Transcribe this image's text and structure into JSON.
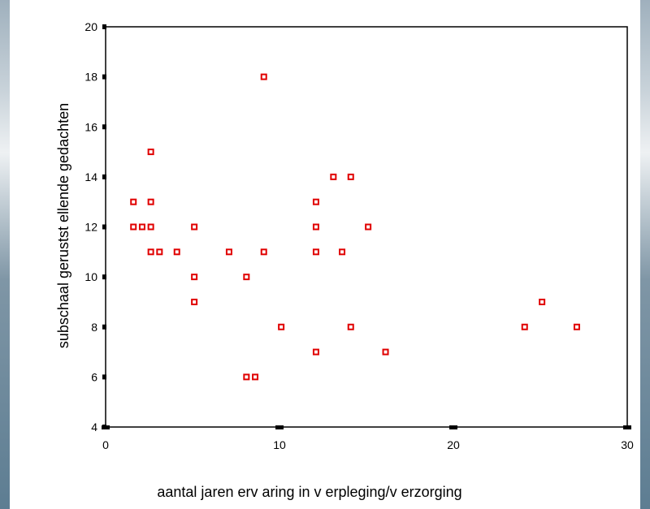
{
  "chart_data": {
    "type": "scatter",
    "xlabel": "aantal jaren erv aring in v erpleging/v erzorging",
    "ylabel": "subschaal gerustst ellende gedachten",
    "xlim": [
      0,
      30
    ],
    "ylim": [
      4,
      20
    ],
    "x_ticks": [
      "0",
      "10",
      "20",
      "30"
    ],
    "y_ticks": [
      "4",
      "6",
      "8",
      "10",
      "12",
      "14",
      "16",
      "18",
      "20"
    ],
    "grid": false,
    "marker_color": "#e00000",
    "series": [
      {
        "points": [
          [
            1.6,
            13
          ],
          [
            1.6,
            12
          ],
          [
            2.1,
            12
          ],
          [
            2.6,
            15
          ],
          [
            2.6,
            13
          ],
          [
            2.6,
            12
          ],
          [
            2.6,
            11
          ],
          [
            3.1,
            11
          ],
          [
            4.1,
            11
          ],
          [
            5.1,
            12
          ],
          [
            5.1,
            10
          ],
          [
            5.1,
            9
          ],
          [
            7.1,
            11
          ],
          [
            8.1,
            10
          ],
          [
            8.1,
            6
          ],
          [
            8.6,
            6
          ],
          [
            9.1,
            18
          ],
          [
            9.1,
            11
          ],
          [
            10.1,
            8
          ],
          [
            12.1,
            13
          ],
          [
            12.1,
            12
          ],
          [
            12.1,
            11
          ],
          [
            12.1,
            7
          ],
          [
            13.1,
            14
          ],
          [
            13.6,
            11
          ],
          [
            14.1,
            14
          ],
          [
            14.1,
            8
          ],
          [
            15.1,
            12
          ],
          [
            16.1,
            7
          ],
          [
            24.1,
            8
          ],
          [
            25.1,
            9
          ],
          [
            27.1,
            8
          ]
        ]
      }
    ]
  }
}
